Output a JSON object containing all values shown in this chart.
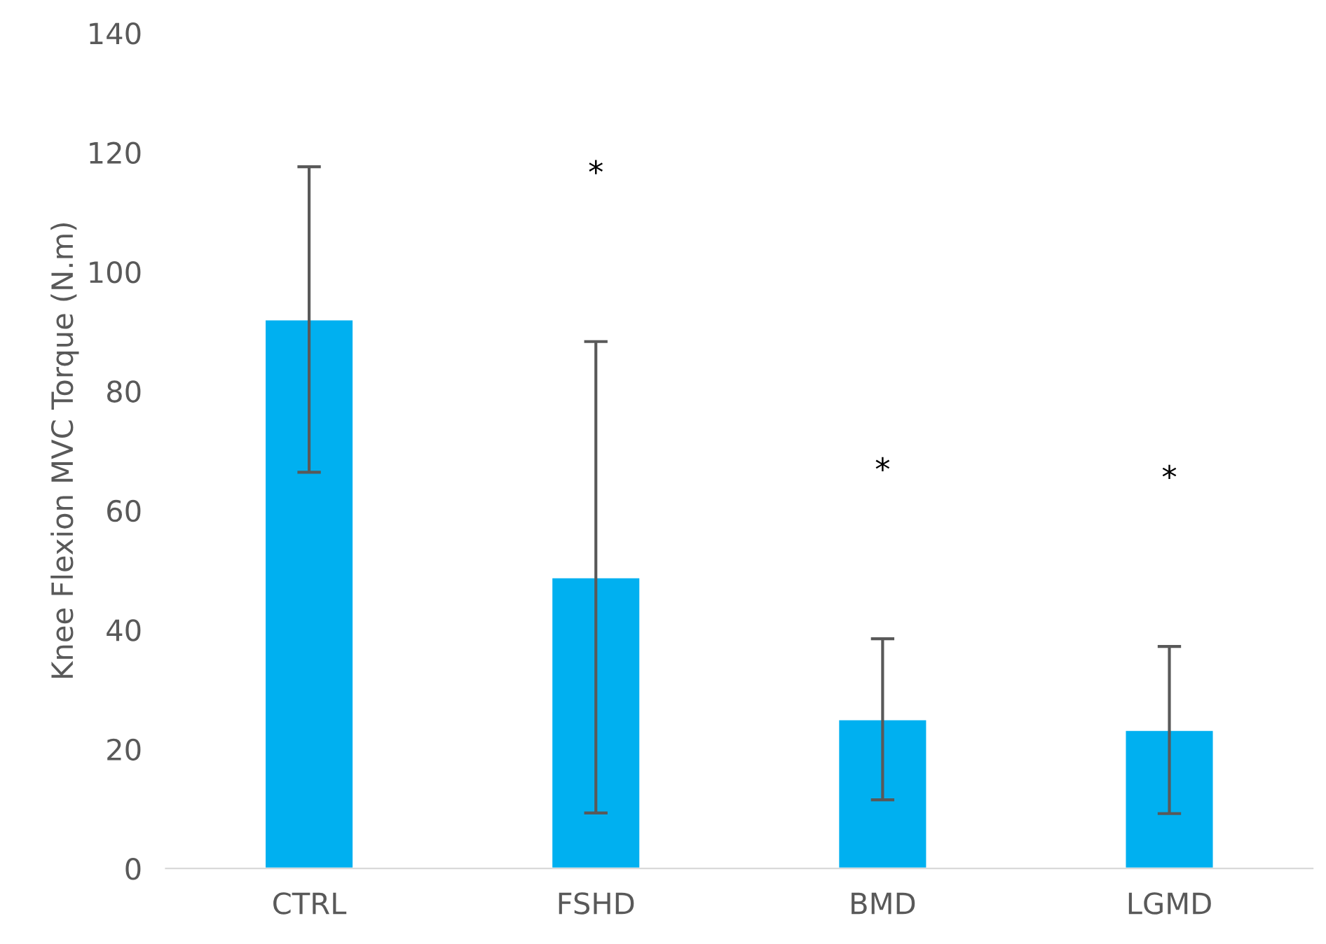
{
  "chart_data": {
    "type": "bar",
    "ylabel": "Knee Flexion MVC Torque (N.m)",
    "categories": [
      "CTRL",
      "FSHD",
      "BMD",
      "LGMD"
    ],
    "values": [
      92,
      48.8,
      25,
      23.2
    ],
    "errors": [
      25.6,
      39.5,
      13.5,
      14
    ],
    "color": "#00b0f0",
    "ylim": [
      0,
      140
    ],
    "yticks": [
      0,
      20,
      40,
      60,
      80,
      100,
      120,
      140
    ],
    "grid": false,
    "annotations": [
      "*",
      "*",
      "*"
    ]
  }
}
